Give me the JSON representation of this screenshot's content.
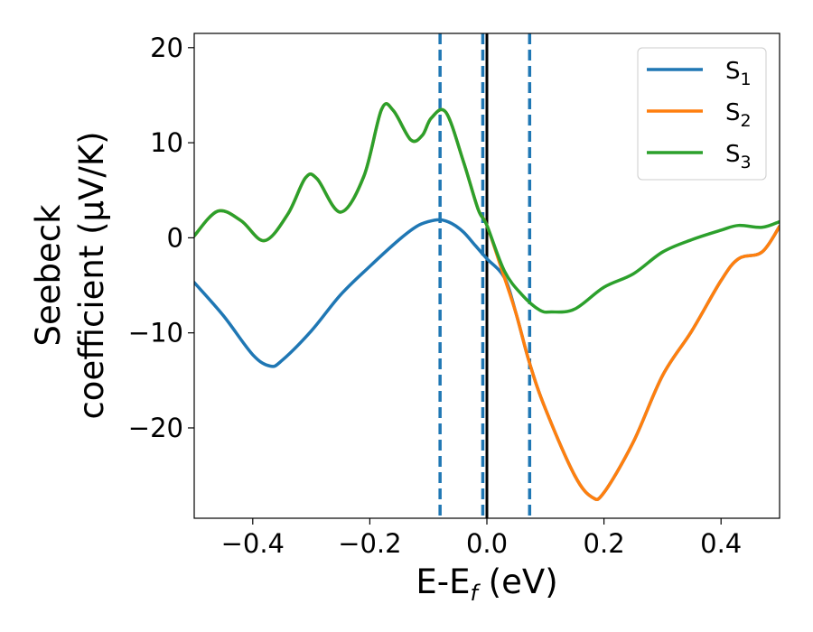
{
  "chart_data": {
    "type": "line",
    "title": "",
    "xlabel": {
      "main": "E-E",
      "sub": "f",
      "unit": " (eV)"
    },
    "ylabel": {
      "line1": "Seebeck",
      "line2": "coefficient  (μV/K)"
    },
    "xlim": [
      -0.5,
      0.5
    ],
    "ylim": [
      -29.5,
      21.5
    ],
    "xticks": [
      -0.4,
      -0.2,
      0.0,
      0.2,
      0.4
    ],
    "xtick_labels": [
      "−0.4",
      "−0.2",
      "0.0",
      "0.2",
      "0.4"
    ],
    "yticks": [
      20,
      10,
      0,
      -10,
      -20
    ],
    "ytick_labels": [
      "20",
      "10",
      "0",
      "−10",
      "−20"
    ],
    "grid": false,
    "legend_position": "top-right",
    "vertical_lines": [
      {
        "x": -0.08,
        "style": "dashed",
        "color": "#1f77b4"
      },
      {
        "x": -0.007,
        "style": "dashed",
        "color": "#1f77b4"
      },
      {
        "x": 0.0,
        "style": "solid",
        "color": "#000000"
      },
      {
        "x": 0.073,
        "style": "dashed",
        "color": "#1f77b4"
      }
    ],
    "series": [
      {
        "name": "S",
        "sub": "1",
        "color": "#1f77b4",
        "points": [
          [
            -0.5,
            -4.7
          ],
          [
            -0.45,
            -8.2
          ],
          [
            -0.4,
            -12.3
          ],
          [
            -0.37,
            -13.5
          ],
          [
            -0.35,
            -12.9
          ],
          [
            -0.3,
            -9.8
          ],
          [
            -0.25,
            -6.0
          ],
          [
            -0.2,
            -3.0
          ],
          [
            -0.15,
            -0.2
          ],
          [
            -0.12,
            1.2
          ],
          [
            -0.1,
            1.7
          ],
          [
            -0.08,
            1.9
          ],
          [
            -0.06,
            1.5
          ],
          [
            -0.04,
            0.6
          ],
          [
            -0.02,
            -0.8
          ],
          [
            0.0,
            -2.2
          ],
          [
            0.03,
            -4.2
          ],
          [
            0.05,
            -8.0
          ],
          [
            0.073,
            -13.2
          ],
          [
            0.1,
            -18.0
          ],
          [
            0.15,
            -25.0
          ],
          [
            0.18,
            -27.3
          ],
          [
            0.2,
            -26.8
          ],
          [
            0.25,
            -21.5
          ],
          [
            0.3,
            -14.5
          ],
          [
            0.35,
            -9.8
          ],
          [
            0.4,
            -4.5
          ],
          [
            0.43,
            -2.2
          ],
          [
            0.47,
            -1.5
          ],
          [
            0.5,
            1.2
          ]
        ]
      },
      {
        "name": "S",
        "sub": "2",
        "color": "#ff7f0e",
        "points": [
          [
            -0.5,
            0.2
          ],
          [
            -0.46,
            2.8
          ],
          [
            -0.42,
            1.8
          ],
          [
            -0.38,
            -0.3
          ],
          [
            -0.34,
            2.5
          ],
          [
            -0.31,
            6.3
          ],
          [
            -0.29,
            6.2
          ],
          [
            -0.25,
            2.7
          ],
          [
            -0.21,
            6.5
          ],
          [
            -0.18,
            13.5
          ],
          [
            -0.16,
            13.4
          ],
          [
            -0.13,
            10.3
          ],
          [
            -0.11,
            10.8
          ],
          [
            -0.095,
            12.6
          ],
          [
            -0.07,
            13.2
          ],
          [
            -0.04,
            8.0
          ],
          [
            -0.015,
            3.0
          ],
          [
            0.0,
            1.3
          ],
          [
            0.03,
            -4.2
          ],
          [
            0.05,
            -8.0
          ],
          [
            0.073,
            -13.2
          ],
          [
            0.1,
            -18.0
          ],
          [
            0.15,
            -25.0
          ],
          [
            0.18,
            -27.3
          ],
          [
            0.2,
            -26.8
          ],
          [
            0.25,
            -21.5
          ],
          [
            0.3,
            -14.5
          ],
          [
            0.35,
            -9.8
          ],
          [
            0.4,
            -4.5
          ],
          [
            0.43,
            -2.2
          ],
          [
            0.47,
            -1.5
          ],
          [
            0.5,
            1.2
          ]
        ]
      },
      {
        "name": "S",
        "sub": "3",
        "color": "#2ca02c",
        "points": [
          [
            -0.5,
            0.2
          ],
          [
            -0.46,
            2.8
          ],
          [
            -0.42,
            1.8
          ],
          [
            -0.38,
            -0.3
          ],
          [
            -0.34,
            2.5
          ],
          [
            -0.31,
            6.3
          ],
          [
            -0.29,
            6.2
          ],
          [
            -0.25,
            2.7
          ],
          [
            -0.21,
            6.5
          ],
          [
            -0.18,
            13.5
          ],
          [
            -0.16,
            13.4
          ],
          [
            -0.13,
            10.3
          ],
          [
            -0.11,
            10.8
          ],
          [
            -0.095,
            12.6
          ],
          [
            -0.07,
            13.2
          ],
          [
            -0.04,
            8.0
          ],
          [
            -0.015,
            3.0
          ],
          [
            0.0,
            1.3
          ],
          [
            0.03,
            -3.5
          ],
          [
            0.06,
            -6.0
          ],
          [
            0.09,
            -7.6
          ],
          [
            0.11,
            -7.8
          ],
          [
            0.15,
            -7.5
          ],
          [
            0.2,
            -5.2
          ],
          [
            0.25,
            -3.8
          ],
          [
            0.3,
            -1.5
          ],
          [
            0.35,
            -0.2
          ],
          [
            0.4,
            0.8
          ],
          [
            0.43,
            1.3
          ],
          [
            0.47,
            1.1
          ],
          [
            0.5,
            1.7
          ]
        ]
      }
    ]
  }
}
